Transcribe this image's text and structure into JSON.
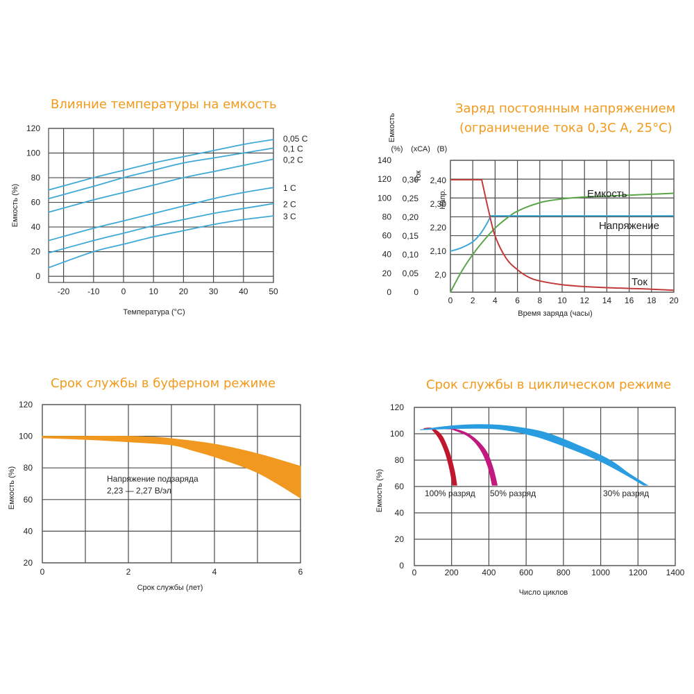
{
  "chart_data": [
    {
      "id": "temp",
      "type": "line",
      "title": "Влияние температуры на емкость",
      "xlabel": "Температура (°C)",
      "ylabel": "Емкость (%)",
      "xlim": [
        -25,
        50
      ],
      "ylim": [
        -5,
        120
      ],
      "xticks": [
        -20,
        -10,
        0,
        10,
        20,
        30,
        40,
        50
      ],
      "yticks": [
        0,
        20,
        40,
        60,
        80,
        100,
        120
      ],
      "grid": true,
      "color": "#3ea8d6",
      "series": [
        {
          "name": "0,05 C",
          "x": [
            -25,
            -10,
            0,
            10,
            20,
            30,
            40,
            50
          ],
          "values": [
            70,
            80,
            86,
            92,
            97,
            102,
            107,
            111
          ]
        },
        {
          "name": "0,1 C",
          "x": [
            -25,
            -10,
            0,
            10,
            20,
            30,
            40,
            50
          ],
          "values": [
            63,
            73,
            80,
            86,
            92,
            96,
            100,
            104
          ]
        },
        {
          "name": "0,2 C",
          "x": [
            -25,
            -10,
            0,
            10,
            20,
            30,
            40,
            50
          ],
          "values": [
            52,
            62,
            68,
            74,
            80,
            85,
            90,
            95
          ]
        },
        {
          "name": "1 C",
          "x": [
            -25,
            -10,
            0,
            10,
            20,
            30,
            40,
            50
          ],
          "values": [
            29,
            39,
            45,
            51,
            57,
            63,
            68,
            72
          ]
        },
        {
          "name": "2 C",
          "x": [
            -25,
            -10,
            0,
            10,
            20,
            30,
            40,
            50
          ],
          "values": [
            19,
            29,
            35,
            41,
            46,
            51,
            55,
            59
          ]
        },
        {
          "name": "3 C",
          "x": [
            -25,
            -10,
            0,
            10,
            20,
            30,
            40,
            50
          ],
          "values": [
            7,
            20,
            26,
            32,
            37,
            42,
            46,
            49
          ]
        }
      ]
    },
    {
      "id": "charge",
      "type": "line",
      "title": "Заряд постоянным напряжением",
      "title2": "(ограничение тока 0,3С А, 25°С)",
      "xlabel": "Время заряда (часы)",
      "axis_titles": [
        "Емкость",
        "Ток",
        "Напр."
      ],
      "axis_units": [
        "(%)",
        "(хСА)",
        "(В)"
      ],
      "xlim": [
        0,
        20
      ],
      "xticks": [
        0,
        2,
        4,
        6,
        8,
        10,
        12,
        14,
        16,
        18,
        20
      ],
      "ylim": [
        0,
        140
      ],
      "yticks_capacity": [
        "0",
        "20",
        "40",
        "60",
        "80",
        "100",
        "120",
        "140"
      ],
      "yticks_current": [
        "0",
        "0,05",
        "0,10",
        "0,15",
        "0,20",
        "0,25",
        "0,30"
      ],
      "yticks_voltage": [
        "2,0",
        "2,10",
        "2,20",
        "2,30",
        "2,40"
      ],
      "grid": true,
      "series": [
        {
          "name": "Емкость",
          "color": "#5aa548",
          "x": [
            0,
            1,
            2,
            3,
            4,
            5,
            6,
            8,
            10,
            12,
            14,
            16,
            18,
            20
          ],
          "values": [
            0,
            22,
            40,
            55,
            68,
            78,
            86,
            95,
            99,
            101,
            102,
            103,
            104,
            105
          ]
        },
        {
          "name": "Напряжение",
          "color": "#3ea8d6",
          "x": [
            0,
            1,
            2,
            2.7,
            3.3,
            3.6,
            5,
            10,
            15,
            20
          ],
          "values": [
            2.1,
            2.115,
            2.14,
            2.175,
            2.22,
            2.25,
            2.25,
            2.25,
            2.25,
            2.25
          ]
        },
        {
          "name": "Ток",
          "color": "#c23a3a",
          "x": [
            0,
            1,
            2,
            2.8,
            3.4,
            4,
            5,
            6,
            7,
            8,
            10,
            12,
            14,
            16,
            18,
            20
          ],
          "values": [
            0.3,
            0.3,
            0.3,
            0.3,
            0.22,
            0.15,
            0.09,
            0.06,
            0.04,
            0.03,
            0.02,
            0.015,
            0.012,
            0.01,
            0.008,
            0.005
          ]
        }
      ]
    },
    {
      "id": "buffer",
      "type": "area",
      "title": "Срок службы в буферном режиме",
      "xlabel": "Срок службы (лет)",
      "ylabel": "Емкость (%)",
      "xlim": [
        0,
        6
      ],
      "ylim": [
        20,
        120
      ],
      "xticks": [
        0,
        2,
        4,
        6
      ],
      "yticks": [
        20,
        40,
        60,
        80,
        100,
        120
      ],
      "grid": true,
      "color": "#f0981f",
      "annotation": [
        "Напряжение подзаряда",
        "2,23 — 2,27 В/эл"
      ],
      "series": [
        {
          "name": "upper",
          "x": [
            0,
            1,
            2,
            2.5,
            3,
            4,
            5,
            6
          ],
          "values": [
            100,
            100,
            100,
            99.5,
            98.5,
            95,
            89,
            81
          ]
        },
        {
          "name": "lower",
          "x": [
            0,
            1,
            2,
            3,
            3.5,
            4,
            5,
            6
          ],
          "values": [
            99,
            98,
            96.5,
            94.5,
            91,
            87,
            77,
            61
          ]
        }
      ]
    },
    {
      "id": "cycle",
      "type": "area",
      "title": "Срок службы в циклическом режиме",
      "xlabel": "Число циклов",
      "ylabel": "Емкость (%)",
      "xlim": [
        0,
        1400
      ],
      "ylim": [
        0,
        120
      ],
      "xticks": [
        0,
        200,
        400,
        600,
        800,
        1000,
        1200,
        1400
      ],
      "yticks": [
        0,
        20,
        40,
        60,
        80,
        100,
        120
      ],
      "grid": true,
      "series": [
        {
          "name": "100% разряд",
          "color": "#c0172e",
          "upper": [
            [
              50,
              104
            ],
            [
              100,
              104
            ],
            [
              150,
              98
            ],
            [
              190,
              85
            ],
            [
              215,
              72
            ],
            [
              228,
              61
            ]
          ],
          "lower": [
            [
              205,
              61
            ],
            [
              190,
              73
            ],
            [
              165,
              86
            ],
            [
              130,
              97
            ],
            [
              90,
              104
            ]
          ]
        },
        {
          "name": "50% разряд",
          "color": "#c2197e",
          "upper": [
            [
              100,
              104
            ],
            [
              200,
              104
            ],
            [
              300,
              99
            ],
            [
              380,
              88
            ],
            [
              420,
              75
            ],
            [
              445,
              61
            ]
          ],
          "lower": [
            [
              418,
              61
            ],
            [
              395,
              75
            ],
            [
              355,
              88
            ],
            [
              290,
              98
            ],
            [
              200,
              103.5
            ]
          ]
        },
        {
          "name": "30% разряд",
          "color": "#2a9de0",
          "upper": [
            [
              30,
              103
            ],
            [
              200,
              106
            ],
            [
              350,
              107
            ],
            [
              500,
              106
            ],
            [
              700,
              101
            ],
            [
              900,
              90
            ],
            [
              1050,
              80
            ],
            [
              1150,
              70
            ],
            [
              1250,
              61
            ]
          ],
          "lower": [
            [
              1230,
              61
            ],
            [
              1120,
              70
            ],
            [
              1000,
              79
            ],
            [
              850,
              88
            ],
            [
              650,
              98
            ],
            [
              450,
              103.5
            ],
            [
              250,
              104
            ],
            [
              30,
              103
            ]
          ]
        }
      ]
    }
  ]
}
